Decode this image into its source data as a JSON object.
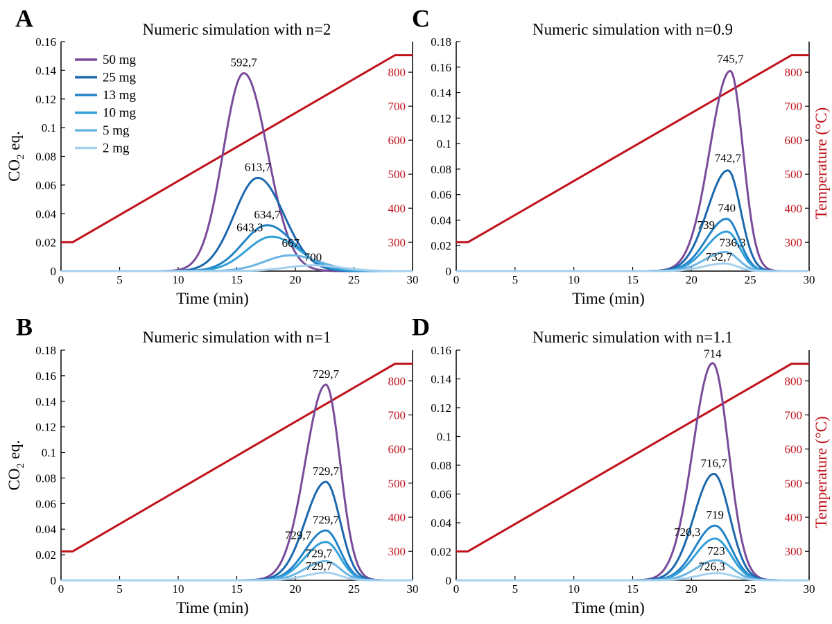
{
  "figure": {
    "colors": {
      "temperature": "#c0111a",
      "axis": "#000000",
      "series": [
        "#7a4b9b",
        "#1c68ad",
        "#2283c6",
        "#33a0d9",
        "#6bb5e3",
        "#a6d1ee"
      ]
    },
    "legend": [
      "50 mg",
      "25 mg",
      "13 mg",
      "10 mg",
      "5 mg",
      "2 mg"
    ]
  },
  "chart_data": [
    {
      "panel": "A",
      "type": "line",
      "title": "Numeric simulation with n=2",
      "xlabel": "Time (min)",
      "ylabel_main": "CO",
      "ylabel_sub": "2",
      "ylabel_tail": " eq.",
      "ylabel_right": "",
      "xlim": [
        0,
        30
      ],
      "xticks": [
        "0",
        "5",
        "10",
        "15",
        "20",
        "25",
        "30"
      ],
      "ylim": [
        0,
        0.16
      ],
      "yticks": [
        "0",
        "0.02",
        "0.04",
        "0.06",
        "0.08",
        "0.1",
        "0.12",
        "0.14",
        "0.16"
      ],
      "y2lim": [
        215,
        890
      ],
      "y2ticks": [
        "300",
        "400",
        "500",
        "600",
        "700",
        "800"
      ],
      "temperature": {
        "start_time": 1,
        "start_temp": 300,
        "end_time": 28.5,
        "end_temp": 850
      },
      "series": [
        {
          "name": "50 mg",
          "peak_time": 15.6,
          "peak_value": 0.138,
          "width_left": 2.6,
          "width_right": 3.0,
          "label": "592,7"
        },
        {
          "name": "25 mg",
          "peak_time": 16.8,
          "peak_value": 0.065,
          "width_left": 3.0,
          "width_right": 3.3,
          "label": "613,7"
        },
        {
          "name": "13 mg",
          "peak_time": 17.6,
          "peak_value": 0.032,
          "width_left": 3.1,
          "width_right": 3.4,
          "label": "634,7"
        },
        {
          "name": "10 mg",
          "peak_time": 18.0,
          "peak_value": 0.024,
          "width_left": 3.2,
          "width_right": 3.5,
          "label": "643,3"
        },
        {
          "name": "5 mg",
          "peak_time": 19.6,
          "peak_value": 0.011,
          "width_left": 3.3,
          "width_right": 3.6,
          "label": "667"
        },
        {
          "name": "2 mg",
          "peak_time": 21.5,
          "peak_value": 0.004,
          "width_left": 3.4,
          "width_right": 3.6,
          "label": "700"
        }
      ]
    },
    {
      "panel": "C",
      "type": "line",
      "title": "Numeric simulation with n=0.9",
      "xlabel": "Time (min)",
      "ylabel_main": "",
      "ylabel_sub": "",
      "ylabel_tail": "",
      "ylabel_right": "Temperature (°C)",
      "xlim": [
        0,
        30
      ],
      "xticks": [
        "0",
        "5",
        "10",
        "15",
        "20",
        "25",
        "30"
      ],
      "ylim": [
        0,
        0.18
      ],
      "yticks": [
        "0",
        "0.02",
        "0.04",
        "0.06",
        "0.08",
        "0.1",
        "0.12",
        "0.14",
        "0.16",
        "0.18"
      ],
      "y2lim": [
        215,
        890
      ],
      "y2ticks": [
        "300",
        "400",
        "500",
        "600",
        "700",
        "800"
      ],
      "temperature": {
        "start_time": 1,
        "start_temp": 300,
        "end_time": 28.5,
        "end_temp": 850
      },
      "series": [
        {
          "name": "50 mg",
          "peak_time": 23.3,
          "peak_value": 0.157,
          "width_left": 2.6,
          "width_right": 1.6,
          "label": "745,7"
        },
        {
          "name": "25 mg",
          "peak_time": 23.1,
          "peak_value": 0.079,
          "width_left": 2.6,
          "width_right": 1.6,
          "label": "742,7"
        },
        {
          "name": "13 mg",
          "peak_time": 23.0,
          "peak_value": 0.041,
          "width_left": 2.6,
          "width_right": 1.6,
          "label": "740"
        },
        {
          "name": "10 mg",
          "peak_time": 23.0,
          "peak_value": 0.031,
          "width_left": 2.6,
          "width_right": 1.6,
          "label": "739"
        },
        {
          "name": "5 mg",
          "peak_time": 22.9,
          "peak_value": 0.015,
          "width_left": 2.6,
          "width_right": 1.6,
          "label": "736,3"
        },
        {
          "name": "2 mg",
          "peak_time": 22.8,
          "peak_value": 0.006,
          "width_left": 2.6,
          "width_right": 1.6,
          "label": "732,7"
        }
      ]
    },
    {
      "panel": "B",
      "type": "line",
      "title": "Numeric simulation with n=1",
      "xlabel": "Time (min)",
      "ylabel_main": "CO",
      "ylabel_sub": "2",
      "ylabel_tail": " eq.",
      "ylabel_right": "",
      "xlim": [
        0,
        30
      ],
      "xticks": [
        "0",
        "5",
        "10",
        "15",
        "20",
        "25",
        "30"
      ],
      "ylim": [
        0,
        0.18
      ],
      "yticks": [
        "0",
        "0.02",
        "0.04",
        "0.06",
        "0.08",
        "0.1",
        "0.12",
        "0.14",
        "0.16",
        "0.18"
      ],
      "y2lim": [
        215,
        890
      ],
      "y2ticks": [
        "300",
        "400",
        "500",
        "600",
        "700",
        "800"
      ],
      "temperature": {
        "start_time": 1,
        "start_temp": 300,
        "end_time": 28.5,
        "end_temp": 850
      },
      "series": [
        {
          "name": "50 mg",
          "peak_time": 22.6,
          "peak_value": 0.153,
          "width_left": 2.6,
          "width_right": 1.8,
          "label": "729,7"
        },
        {
          "name": "25 mg",
          "peak_time": 22.6,
          "peak_value": 0.077,
          "width_left": 2.6,
          "width_right": 1.8,
          "label": "729,7"
        },
        {
          "name": "13 mg",
          "peak_time": 22.6,
          "peak_value": 0.039,
          "width_left": 2.6,
          "width_right": 1.8,
          "label": "729,7"
        },
        {
          "name": "10 mg",
          "peak_time": 22.6,
          "peak_value": 0.03,
          "width_left": 2.6,
          "width_right": 1.8,
          "label": "729,7"
        },
        {
          "name": "5 mg",
          "peak_time": 22.6,
          "peak_value": 0.015,
          "width_left": 2.6,
          "width_right": 1.8,
          "label": "729,7"
        },
        {
          "name": "2 mg",
          "peak_time": 22.6,
          "peak_value": 0.006,
          "width_left": 2.6,
          "width_right": 1.8,
          "label": "729,7"
        }
      ]
    },
    {
      "panel": "D",
      "type": "line",
      "title": "Numeric simulation with n=1.1",
      "xlabel": "Time (min)",
      "ylabel_main": "",
      "ylabel_sub": "",
      "ylabel_tail": "",
      "ylabel_right": "Temperature (°C)",
      "xlim": [
        0,
        30
      ],
      "xticks": [
        "0",
        "5",
        "10",
        "15",
        "20",
        "25",
        "30"
      ],
      "ylim": [
        0,
        0.16
      ],
      "yticks": [
        "0",
        "0.02",
        "0.04",
        "0.06",
        "0.08",
        "0.1",
        "0.12",
        "0.14",
        "0.16"
      ],
      "y2lim": [
        215,
        890
      ],
      "y2ticks": [
        "300",
        "400",
        "500",
        "600",
        "700",
        "800"
      ],
      "temperature": {
        "start_time": 1,
        "start_temp": 300,
        "end_time": 28.5,
        "end_temp": 850
      },
      "series": [
        {
          "name": "50 mg",
          "peak_time": 21.8,
          "peak_value": 0.151,
          "width_left": 2.5,
          "width_right": 2.0,
          "label": "714"
        },
        {
          "name": "25 mg",
          "peak_time": 21.9,
          "peak_value": 0.074,
          "width_left": 2.5,
          "width_right": 2.0,
          "label": "716,7"
        },
        {
          "name": "13 mg",
          "peak_time": 22.0,
          "peak_value": 0.038,
          "width_left": 2.5,
          "width_right": 2.0,
          "label": "719"
        },
        {
          "name": "10 mg",
          "peak_time": 22.0,
          "peak_value": 0.029,
          "width_left": 2.5,
          "width_right": 2.0,
          "label": "720,3"
        },
        {
          "name": "5 mg",
          "peak_time": 22.1,
          "peak_value": 0.014,
          "width_left": 2.5,
          "width_right": 2.0,
          "label": "723"
        },
        {
          "name": "2 mg",
          "peak_time": 22.2,
          "peak_value": 0.005,
          "width_left": 2.5,
          "width_right": 2.0,
          "label": "726,3"
        }
      ]
    }
  ]
}
